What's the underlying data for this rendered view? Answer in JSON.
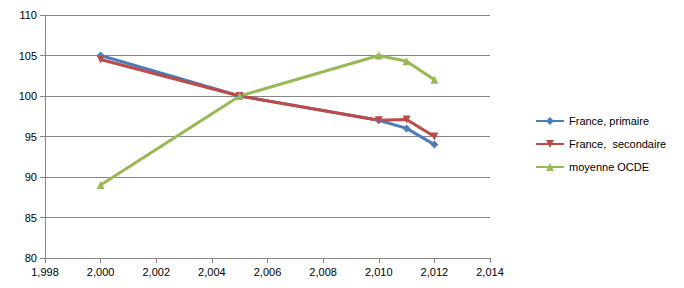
{
  "chart_data": {
    "type": "line",
    "series": [
      {
        "name": "France, primaire",
        "color": "#4a7ebb",
        "marker": "diamond",
        "x": [
          2000,
          2005,
          2010,
          2011,
          2012
        ],
        "values": [
          105,
          100,
          97,
          96,
          94
        ]
      },
      {
        "name": "France,  secondaire",
        "color": "#be4b48",
        "marker": "triangle_down",
        "x": [
          2000,
          2005,
          2010,
          2011,
          2012
        ],
        "values": [
          104.5,
          100,
          97,
          97.1,
          95
        ]
      },
      {
        "name": "moyenne OCDE",
        "color": "#98b954",
        "marker": "triangle",
        "x": [
          2000,
          2005,
          2010,
          2011,
          2012
        ],
        "values": [
          89,
          100,
          105,
          104.3,
          102
        ]
      }
    ],
    "xlim": [
      1998,
      2014
    ],
    "xticks": [
      1998,
      2000,
      2002,
      2004,
      2006,
      2008,
      2010,
      2012,
      2014
    ],
    "ylim": [
      80,
      110
    ],
    "yticks": [
      80,
      85,
      90,
      95,
      100,
      105,
      110
    ],
    "grid": true,
    "legend": "right"
  }
}
